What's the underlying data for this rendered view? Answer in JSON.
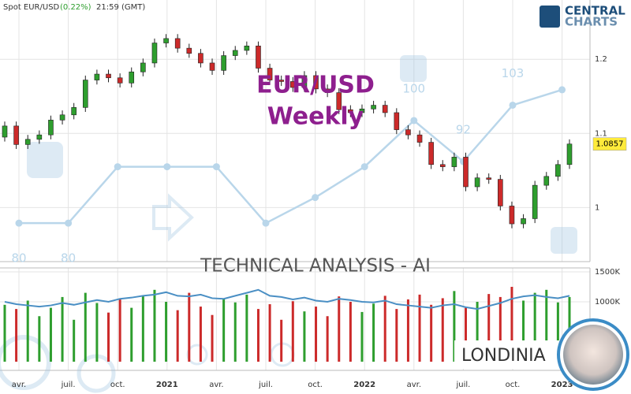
{
  "header": {
    "instrument": "Spot EUR/USD",
    "change": "(0.22%)",
    "time": "21:59 (GMT)"
  },
  "logo": {
    "line1": "CENTRAL",
    "line2": "CHARTS"
  },
  "watermark": {
    "title": "EUR/USD",
    "subtitle": "Weekly",
    "banner": "TECHNICAL  ANALYSIS - AI",
    "brand": "LONDINIA"
  },
  "chart_data": {
    "type": "candlestick",
    "categories": [
      "avr.",
      "juil.",
      "oct.",
      "2021",
      "avr.",
      "juil.",
      "oct.",
      "2022",
      "avr.",
      "juil.",
      "oct.",
      "2023"
    ],
    "open": [
      1.095,
      1.11,
      1.085,
      1.092,
      1.098,
      1.118,
      1.125,
      1.135,
      1.172,
      1.18,
      1.175,
      1.168,
      1.183,
      1.195,
      1.222,
      1.228,
      1.215,
      1.208,
      1.195,
      1.185,
      1.205,
      1.212,
      1.218,
      1.188,
      1.172,
      1.17,
      1.162,
      1.178,
      1.16,
      1.155,
      1.132,
      1.128,
      1.133,
      1.138,
      1.128,
      1.105,
      1.098,
      1.088,
      1.058,
      1.055,
      1.068,
      1.028,
      1.04,
      1.038,
      1.002,
      0.978,
      0.985,
      1.03,
      1.042,
      1.058
    ],
    "high": [
      1.116,
      1.116,
      1.098,
      1.104,
      1.124,
      1.131,
      1.141,
      1.178,
      1.186,
      1.186,
      1.181,
      1.189,
      1.201,
      1.228,
      1.234,
      1.234,
      1.221,
      1.214,
      1.201,
      1.211,
      1.218,
      1.224,
      1.224,
      1.194,
      1.178,
      1.176,
      1.184,
      1.184,
      1.166,
      1.161,
      1.138,
      1.139,
      1.144,
      1.144,
      1.134,
      1.111,
      1.104,
      1.094,
      1.064,
      1.074,
      1.074,
      1.046,
      1.046,
      1.044,
      1.008,
      0.991,
      1.036,
      1.048,
      1.064,
      1.092
    ],
    "low": [
      1.089,
      1.079,
      1.079,
      1.086,
      1.092,
      1.112,
      1.119,
      1.129,
      1.166,
      1.169,
      1.162,
      1.162,
      1.177,
      1.189,
      1.216,
      1.209,
      1.202,
      1.189,
      1.179,
      1.179,
      1.199,
      1.206,
      1.182,
      1.166,
      1.164,
      1.156,
      1.156,
      1.154,
      1.149,
      1.126,
      1.122,
      1.122,
      1.127,
      1.122,
      1.099,
      1.092,
      1.082,
      1.052,
      1.049,
      1.049,
      1.022,
      1.022,
      1.032,
      0.996,
      0.972,
      0.972,
      0.979,
      1.024,
      1.036,
      1.052
    ],
    "close": [
      1.11,
      1.085,
      1.092,
      1.098,
      1.118,
      1.125,
      1.135,
      1.172,
      1.18,
      1.175,
      1.168,
      1.183,
      1.195,
      1.222,
      1.228,
      1.215,
      1.208,
      1.195,
      1.185,
      1.205,
      1.212,
      1.218,
      1.188,
      1.172,
      1.17,
      1.162,
      1.178,
      1.16,
      1.155,
      1.132,
      1.128,
      1.133,
      1.138,
      1.128,
      1.105,
      1.098,
      1.088,
      1.058,
      1.055,
      1.068,
      1.028,
      1.04,
      1.038,
      1.002,
      0.978,
      0.985,
      1.03,
      1.042,
      1.058,
      1.0857
    ],
    "up_color": "#2e9e2e",
    "down_color": "#cc2a2a",
    "ylim": [
      0.927,
      1.28
    ],
    "yticks": [
      1,
      1.1,
      1.2
    ],
    "volume": [
      950000,
      880000,
      1020000,
      760000,
      900000,
      1080000,
      700000,
      1150000,
      980000,
      820000,
      1050000,
      900000,
      1100000,
      1200000,
      1000000,
      860000,
      1150000,
      920000,
      780000,
      1050000,
      990000,
      1120000,
      880000,
      960000,
      700000,
      1010000,
      840000,
      920000,
      760000,
      1090000,
      1000000,
      830000,
      970000,
      1100000,
      880000,
      1040000,
      1120000,
      950000,
      1060000,
      1180000,
      900000,
      1000000,
      1130000,
      1080000,
      1250000,
      1020000,
      1150000,
      1200000,
      990000,
      1080000
    ],
    "volume_average": [
      1000000,
      960000,
      940000,
      920000,
      940000,
      980000,
      950000,
      990000,
      1030000,
      1000000,
      1050000,
      1070000,
      1100000,
      1120000,
      1160000,
      1100000,
      1090000,
      1120000,
      1060000,
      1050000,
      1100000,
      1150000,
      1200000,
      1100000,
      1080000,
      1040000,
      1070000,
      1020000,
      1000000,
      1050000,
      1030000,
      1000000,
      990000,
      1020000,
      960000,
      940000,
      920000,
      900000,
      940000,
      960000,
      910000,
      880000,
      930000,
      980000,
      1050000,
      1090000,
      1110000,
      1080000,
      1060000,
      1100000
    ],
    "volume_color": "#4a8fc4",
    "volume_ylim": [
      0,
      1500000
    ],
    "volume_yticks": [
      {
        "value": 1000000,
        "label": "1000K"
      },
      {
        "value": 1500000,
        "label": "1500K"
      }
    ],
    "score": {
      "values": [
        80,
        80,
        91,
        91,
        91,
        80,
        85,
        91,
        100,
        92,
        103,
        106
      ],
      "value_labels": [
        "80",
        "80",
        null,
        null,
        null,
        null,
        null,
        null,
        "100",
        "92",
        "103",
        null
      ],
      "color": "#b9d6ea",
      "ylim": [
        72.5,
        123.5
      ]
    },
    "grid": true
  }
}
